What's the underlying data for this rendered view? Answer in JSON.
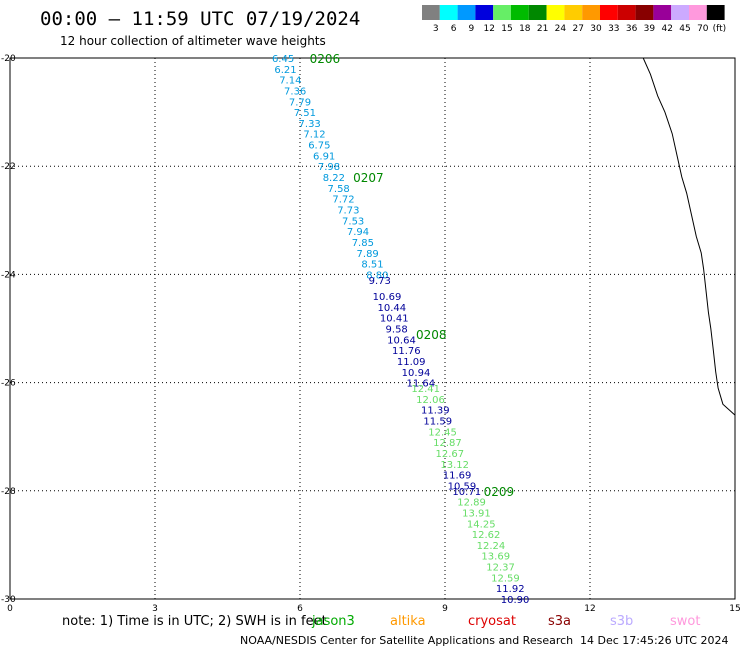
{
  "header": {
    "title": "00:00 — 11:59 UTC 07/19/2024",
    "subtitle": "12 hour collection of altimeter wave heights"
  },
  "legend": {
    "swatches": [
      {
        "color": "#808080",
        "label": "3"
      },
      {
        "color": "#00ffff",
        "label": "6"
      },
      {
        "color": "#0099ff",
        "label": "9"
      },
      {
        "color": "#0000dd",
        "label": "12"
      },
      {
        "color": "#66ee66",
        "label": "15"
      },
      {
        "color": "#00bb00",
        "label": "18"
      },
      {
        "color": "#008800",
        "label": "21"
      },
      {
        "color": "#ffff00",
        "label": "24"
      },
      {
        "color": "#ffcc00",
        "label": "27"
      },
      {
        "color": "#ff9900",
        "label": "30"
      },
      {
        "color": "#ff0000",
        "label": "33"
      },
      {
        "color": "#cc0000",
        "label": "36"
      },
      {
        "color": "#880000",
        "label": "39"
      },
      {
        "color": "#990099",
        "label": "42"
      },
      {
        "color": "#ccaaff",
        "label": "45"
      },
      {
        "color": "#ff99dd",
        "label": "70"
      },
      {
        "color": "#000000",
        "label": ""
      }
    ],
    "unit": "(ft)"
  },
  "axes": {
    "x_ticks": [
      "0",
      "3",
      "6",
      "9",
      "12",
      "15"
    ],
    "y_ticks": [
      "-20",
      "-22",
      "-24",
      "-26",
      "-28",
      "-30"
    ],
    "x_range": [
      0,
      15
    ],
    "y_range": [
      -30,
      -20
    ]
  },
  "track": {
    "times": [
      {
        "label": "0206",
        "lon": 6.2,
        "lat": -20.0
      },
      {
        "label": "0207",
        "lon": 7.1,
        "lat": -22.2
      },
      {
        "label": "0208",
        "lon": 8.4,
        "lat": -25.1
      },
      {
        "label": "0209",
        "lon": 9.8,
        "lat": -28.0
      }
    ],
    "points": [
      {
        "lon": 5.65,
        "lat": -20.0,
        "value": "6.45",
        "color": "#0099dd"
      },
      {
        "lon": 5.7,
        "lat": -20.2,
        "value": "6.21",
        "color": "#0099dd"
      },
      {
        "lon": 5.8,
        "lat": -20.4,
        "value": "7.14",
        "color": "#0099dd"
      },
      {
        "lon": 5.9,
        "lat": -20.6,
        "value": "7.36",
        "color": "#0099dd"
      },
      {
        "lon": 6.0,
        "lat": -20.8,
        "value": "7.79",
        "color": "#0099dd"
      },
      {
        "lon": 6.1,
        "lat": -21.0,
        "value": "7.51",
        "color": "#0099dd"
      },
      {
        "lon": 6.2,
        "lat": -21.2,
        "value": "7.33",
        "color": "#0099dd"
      },
      {
        "lon": 6.3,
        "lat": -21.4,
        "value": "7.12",
        "color": "#0099dd"
      },
      {
        "lon": 6.4,
        "lat": -21.6,
        "value": "6.75",
        "color": "#0099dd"
      },
      {
        "lon": 6.5,
        "lat": -21.8,
        "value": "6.91",
        "color": "#0099dd"
      },
      {
        "lon": 6.6,
        "lat": -22.0,
        "value": "7.98",
        "color": "#0099dd"
      },
      {
        "lon": 6.7,
        "lat": -22.2,
        "value": "8.22",
        "color": "#0099dd"
      },
      {
        "lon": 6.8,
        "lat": -22.4,
        "value": "7.58",
        "color": "#0099dd"
      },
      {
        "lon": 6.9,
        "lat": -22.6,
        "value": "7.72",
        "color": "#0099dd"
      },
      {
        "lon": 7.0,
        "lat": -22.8,
        "value": "7.73",
        "color": "#0099dd"
      },
      {
        "lon": 7.1,
        "lat": -23.0,
        "value": "7.53",
        "color": "#0099dd"
      },
      {
        "lon": 7.2,
        "lat": -23.2,
        "value": "7.94",
        "color": "#0099dd"
      },
      {
        "lon": 7.3,
        "lat": -23.4,
        "value": "7.85",
        "color": "#0099dd"
      },
      {
        "lon": 7.4,
        "lat": -23.6,
        "value": "7.89",
        "color": "#0099dd"
      },
      {
        "lon": 7.5,
        "lat": -23.8,
        "value": "8.51",
        "color": "#0099dd"
      },
      {
        "lon": 7.6,
        "lat": -24.0,
        "value": "8.80",
        "color": "#0099dd"
      },
      {
        "lon": 7.65,
        "lat": -24.1,
        "value": "9.73",
        "color": "#000099"
      },
      {
        "lon": 7.8,
        "lat": -24.4,
        "value": "10.69",
        "color": "#000099"
      },
      {
        "lon": 7.9,
        "lat": -24.6,
        "value": "10.44",
        "color": "#000099"
      },
      {
        "lon": 7.95,
        "lat": -24.8,
        "value": "10.41",
        "color": "#000099"
      },
      {
        "lon": 8.0,
        "lat": -25.0,
        "value": "9.58",
        "color": "#000099"
      },
      {
        "lon": 8.1,
        "lat": -25.2,
        "value": "10.64",
        "color": "#000099"
      },
      {
        "lon": 8.2,
        "lat": -25.4,
        "value": "11.76",
        "color": "#000099"
      },
      {
        "lon": 8.3,
        "lat": -25.6,
        "value": "11.09",
        "color": "#000099"
      },
      {
        "lon": 8.4,
        "lat": -25.8,
        "value": "10.94",
        "color": "#000099"
      },
      {
        "lon": 8.5,
        "lat": -26.0,
        "value": "11.64",
        "color": "#000099"
      },
      {
        "lon": 8.6,
        "lat": -26.1,
        "value": "12.41",
        "color": "#66dd66"
      },
      {
        "lon": 8.7,
        "lat": -26.3,
        "value": "12.06",
        "color": "#66dd66"
      },
      {
        "lon": 8.8,
        "lat": -26.5,
        "value": "11.39",
        "color": "#000099"
      },
      {
        "lon": 8.85,
        "lat": -26.7,
        "value": "11.59",
        "color": "#000099"
      },
      {
        "lon": 8.95,
        "lat": -26.9,
        "value": "12.45",
        "color": "#66dd66"
      },
      {
        "lon": 9.05,
        "lat": -27.1,
        "value": "12.87",
        "color": "#66dd66"
      },
      {
        "lon": 9.1,
        "lat": -27.3,
        "value": "12.67",
        "color": "#66dd66"
      },
      {
        "lon": 9.2,
        "lat": -27.5,
        "value": "13.12",
        "color": "#66dd66"
      },
      {
        "lon": 9.25,
        "lat": -27.7,
        "value": "11.69",
        "color": "#000099"
      },
      {
        "lon": 9.35,
        "lat": -27.9,
        "value": "10.59",
        "color": "#000099"
      },
      {
        "lon": 9.45,
        "lat": -28.0,
        "value": "10.71",
        "color": "#000099"
      },
      {
        "lon": 9.55,
        "lat": -28.2,
        "value": "12.89",
        "color": "#66dd66"
      },
      {
        "lon": 9.65,
        "lat": -28.4,
        "value": "13.91",
        "color": "#66dd66"
      },
      {
        "lon": 9.75,
        "lat": -28.6,
        "value": "14.25",
        "color": "#66dd66"
      },
      {
        "lon": 9.85,
        "lat": -28.8,
        "value": "12.62",
        "color": "#66dd66"
      },
      {
        "lon": 9.95,
        "lat": -29.0,
        "value": "12.24",
        "color": "#66dd66"
      },
      {
        "lon": 10.05,
        "lat": -29.2,
        "value": "13.69",
        "color": "#66dd66"
      },
      {
        "lon": 10.15,
        "lat": -29.4,
        "value": "12.37",
        "color": "#66dd66"
      },
      {
        "lon": 10.25,
        "lat": -29.6,
        "value": "12.59",
        "color": "#66dd66"
      },
      {
        "lon": 10.35,
        "lat": -29.8,
        "value": "11.92",
        "color": "#000099"
      },
      {
        "lon": 10.45,
        "lat": -30.0,
        "value": "10.90",
        "color": "#000099"
      }
    ]
  },
  "coastline": [
    [
      13.1,
      -20.0
    ],
    [
      13.25,
      -20.3
    ],
    [
      13.4,
      -20.7
    ],
    [
      13.55,
      -21.0
    ],
    [
      13.7,
      -21.4
    ],
    [
      13.8,
      -21.8
    ],
    [
      13.9,
      -22.2
    ],
    [
      14.0,
      -22.5
    ],
    [
      14.1,
      -22.9
    ],
    [
      14.2,
      -23.3
    ],
    [
      14.3,
      -23.6
    ],
    [
      14.35,
      -23.9
    ],
    [
      14.4,
      -24.3
    ],
    [
      14.45,
      -24.7
    ],
    [
      14.5,
      -25.0
    ],
    [
      14.55,
      -25.4
    ],
    [
      14.6,
      -25.8
    ],
    [
      14.65,
      -26.1
    ],
    [
      14.75,
      -26.4
    ],
    [
      15.0,
      -26.6
    ]
  ],
  "footer": {
    "note": "note: 1) Time is in UTC; 2) SWH is in feet",
    "missions": [
      {
        "name": "jason3",
        "color": "#00aa00"
      },
      {
        "name": "altika",
        "color": "#ff9900"
      },
      {
        "name": "cryosat",
        "color": "#dd0000"
      },
      {
        "name": "s3a",
        "color": "#880000"
      },
      {
        "name": "s3b",
        "color": "#bbaaff"
      },
      {
        "name": "swot",
        "color": "#ff99dd"
      }
    ],
    "credit": "NOAA/NESDIS Center for Satellite Applications and Research",
    "timestamp": "14 Dec 17:45:26 UTC 2024"
  }
}
